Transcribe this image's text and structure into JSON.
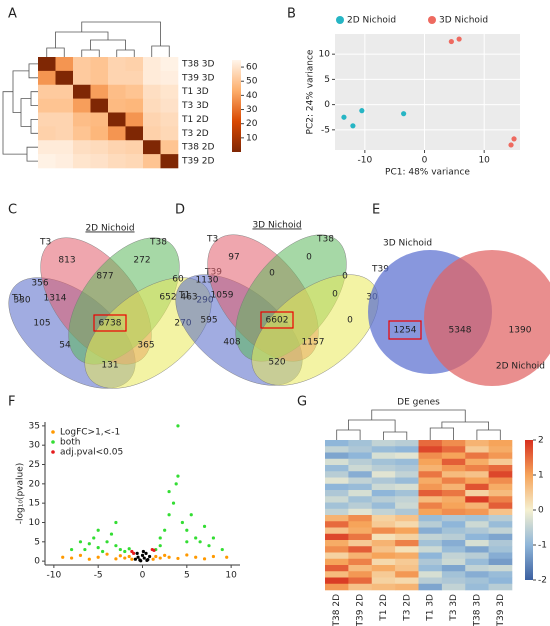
{
  "chart_data": [
    {
      "type": "heatmap",
      "panel": "A",
      "labels": [
        "T38 3D",
        "T39 3D",
        "T1 3D",
        "T3 3D",
        "T1 2D",
        "T3 2D",
        "T38 2D",
        "T39 2D"
      ],
      "values": [
        [
          0,
          38,
          52,
          50,
          55,
          54,
          62,
          64
        ],
        [
          38,
          0,
          52,
          50,
          55,
          55,
          62,
          63
        ],
        [
          52,
          52,
          0,
          40,
          48,
          50,
          58,
          60
        ],
        [
          50,
          50,
          40,
          0,
          47,
          46,
          57,
          59
        ],
        [
          55,
          55,
          48,
          47,
          0,
          38,
          55,
          57
        ],
        [
          54,
          55,
          50,
          46,
          38,
          0,
          54,
          56
        ],
        [
          62,
          62,
          58,
          57,
          55,
          54,
          0,
          50
        ],
        [
          64,
          63,
          60,
          59,
          57,
          56,
          50,
          0
        ]
      ],
      "zlim": [
        0,
        65
      ],
      "zticks": [
        10,
        20,
        30,
        40,
        50,
        60
      ],
      "colorscale": [
        "#7f2704",
        "#d94801",
        "#fdae6b",
        "#fff5eb"
      ]
    },
    {
      "type": "scatter",
      "panel": "B",
      "xlabel": "PC1: 48% variance",
      "ylabel": "PC2: 24% variance",
      "xlim": [
        -15,
        16
      ],
      "ylim": [
        -9,
        14
      ],
      "xticks": [
        -10,
        0,
        10
      ],
      "yticks": [
        -5,
        0,
        5,
        10
      ],
      "grid": true,
      "background": "#ebebeb",
      "legend": "top",
      "series": [
        {
          "name": "2D Nichoid",
          "color": "#26b5c4",
          "x": [
            -13.5,
            -12,
            -10.5,
            -3.5
          ],
          "y": [
            -2.5,
            -4.2,
            -1.2,
            -1.8
          ]
        },
        {
          "name": "3D Nichoid",
          "color": "#ee6a60",
          "x": [
            4.5,
            5.8,
            14.5,
            15
          ],
          "y": [
            12.5,
            13,
            -8,
            -6.8
          ]
        }
      ]
    },
    {
      "type": "venn4",
      "panel": "C",
      "title": "2D Nichoid",
      "sets": [
        {
          "name": "T1",
          "color": "#5468c8"
        },
        {
          "name": "T3",
          "color": "#e25c6c"
        },
        {
          "name": "T38",
          "color": "#5cb85c"
        },
        {
          "name": "T39",
          "color": "#e9e95a"
        }
      ],
      "regions": [
        813,
        272,
        330,
        290,
        356,
        877,
        60,
        1314,
        652,
        6738,
        105,
        270,
        54,
        365,
        131
      ],
      "highlight_region": 9
    },
    {
      "type": "venn4",
      "panel": "D",
      "title": "3D Nichoid",
      "sets": [
        {
          "name": "T1",
          "color": "#5468c8"
        },
        {
          "name": "T3",
          "color": "#e25c6c"
        },
        {
          "name": "T38",
          "color": "#5cb85c"
        },
        {
          "name": "T39",
          "color": "#e9e95a"
        }
      ],
      "regions": [
        97,
        0,
        463,
        30,
        1130,
        0,
        0,
        1059,
        0,
        6602,
        595,
        0,
        408,
        1157,
        520
      ],
      "highlight_region": 9
    },
    {
      "type": "venn2",
      "panel": "E",
      "sets": [
        {
          "name": "3D Nichoid",
          "color": "#5a6fd0"
        },
        {
          "name": "2D Nichoid",
          "color": "#e06262"
        }
      ],
      "regions": [
        1254,
        5348,
        1390
      ],
      "highlight_region": 0
    },
    {
      "type": "scatter",
      "panel": "F",
      "ylabel": "-log₁₀(pvalue)",
      "xlim": [
        -11,
        11
      ],
      "ylim": [
        -1,
        36
      ],
      "xticks": [
        -10,
        -5,
        0,
        5,
        10
      ],
      "yticks": [
        0,
        5,
        10,
        15,
        20,
        25,
        30,
        35
      ],
      "grid": false,
      "legend": "upper left",
      "series": [
        {
          "color": "#000000",
          "x": [
            -0.8,
            -0.5,
            -0.3,
            0,
            0.2,
            0.4,
            0.6,
            0.8,
            -0.6,
            0.1,
            -0.2,
            0.5
          ],
          "y": [
            0.5,
            1,
            0.3,
            1.5,
            0.8,
            2,
            0.4,
            1.2,
            2,
            2.5,
            0.1,
            0.2
          ]
        },
        {
          "name": "LogFC>1,<-1",
          "color": "#ff9900",
          "x": [
            -9,
            -8,
            -7,
            -6,
            -5,
            -4,
            -3,
            -2.5,
            -2,
            -1.5,
            -1.2,
            1.2,
            1.5,
            2,
            2.5,
            3,
            4,
            5,
            6,
            7,
            8,
            9.5
          ],
          "y": [
            1,
            0.8,
            1.5,
            0.5,
            1,
            1.8,
            0.6,
            1.4,
            0.8,
            1.2,
            0.5,
            0.5,
            1.2,
            0.8,
            1.5,
            1,
            0.7,
            1.6,
            1,
            0.6,
            1.2,
            1
          ]
        },
        {
          "name": "both",
          "color": "#33dd33",
          "x": [
            -7,
            -6.5,
            -6,
            -5.5,
            -5,
            -4.5,
            -4,
            -3.5,
            -3,
            -2.5,
            -2,
            -1.5,
            -8,
            -5,
            -3,
            2,
            2.5,
            3,
            3.5,
            3.8,
            4,
            4.5,
            5,
            5.5,
            6,
            6.5,
            7,
            7.5,
            8,
            9,
            3,
            2,
            1.5,
            4,
            5
          ],
          "y": [
            5,
            3,
            4.5,
            6,
            3.5,
            2.5,
            5,
            7,
            4,
            3,
            2.5,
            3.2,
            3,
            8,
            10,
            6,
            8,
            12,
            15,
            20,
            35,
            10,
            8,
            12,
            6,
            5,
            9,
            4,
            6,
            3,
            18,
            4,
            3,
            22,
            5
          ]
        },
        {
          "name": "adj.pval<0.05",
          "color": "#e41a1c",
          "x": [
            -1.2,
            1.3,
            1.1,
            -1.0
          ],
          "y": [
            2.5,
            2.8,
            3,
            2
          ]
        }
      ]
    },
    {
      "type": "heatmap",
      "panel": "G",
      "title": "DE genes",
      "columns": [
        "T38 2D",
        "T39 2D",
        "T1 2D",
        "T3 2D",
        "T1 3D",
        "T3 3D",
        "T38 3D",
        "T39 3D"
      ],
      "values": [
        [
          -1,
          -0.8,
          -0.5,
          -0.6,
          1.5,
          1.2,
          0.8,
          1.0
        ],
        [
          -0.5,
          -0.7,
          -0.9,
          -1.0,
          1.8,
          1.5,
          0.5,
          0.9
        ],
        [
          -1.2,
          -1.0,
          -0.3,
          -0.2,
          1.2,
          1.0,
          1.4,
          1.1
        ],
        [
          -0.3,
          -0.6,
          -0.8,
          -0.9,
          1.0,
          1.6,
          0.9,
          0.5
        ],
        [
          -0.9,
          -0.4,
          -0.6,
          -0.7,
          0.8,
          1.1,
          1.3,
          1.5
        ],
        [
          -0.6,
          -1.1,
          -0.2,
          -0.5,
          1.4,
          0.7,
          0.6,
          1.8
        ],
        [
          -0.2,
          -0.5,
          -0.7,
          -0.9,
          0.9,
          1.3,
          1.0,
          1.2
        ],
        [
          -1.0,
          -0.9,
          -0.4,
          -0.3,
          1.1,
          0.8,
          1.7,
          0.9
        ],
        [
          -0.7,
          -0.3,
          -1.0,
          -0.8,
          1.6,
          1.4,
          0.4,
          0.7
        ],
        [
          -0.4,
          -0.8,
          -0.6,
          -0.5,
          0.7,
          0.9,
          1.9,
          1.3
        ],
        [
          -0.8,
          -0.6,
          -0.9,
          -0.4,
          1.3,
          1.0,
          0.8,
          1.6
        ],
        [
          -0.5,
          -0.2,
          -0.5,
          -0.7,
          1.0,
          1.2,
          1.1,
          0.6
        ],
        [
          0.8,
          1.2,
          0.4,
          0.6,
          -0.9,
          -0.7,
          -0.8,
          -0.6
        ],
        [
          1.5,
          1.0,
          0.5,
          0.3,
          -0.6,
          -1.0,
          -0.4,
          -0.9
        ],
        [
          0.6,
          0.9,
          1.2,
          1.0,
          -1.1,
          -0.8,
          -0.7,
          -0.5
        ],
        [
          1.8,
          1.4,
          0.2,
          0.4,
          -0.5,
          -0.6,
          -1.0,
          -1.2
        ],
        [
          0.9,
          0.5,
          0.8,
          1.3,
          -0.8,
          -1.1,
          -0.3,
          -0.7
        ],
        [
          1.2,
          1.6,
          0.6,
          0.2,
          -0.4,
          -0.9,
          -1.2,
          -0.8
        ],
        [
          0.4,
          0.8,
          1.0,
          0.9,
          -1.0,
          -0.5,
          -0.6,
          -1.1
        ],
        [
          1.0,
          1.3,
          0.3,
          0.5,
          -0.7,
          -0.4,
          -0.9,
          -1.3
        ],
        [
          1.6,
          0.7,
          0.9,
          0.6,
          -0.9,
          -1.2,
          -0.5,
          -0.4
        ],
        [
          0.7,
          1.1,
          0.5,
          1.1,
          -0.3,
          -0.8,
          -1.1,
          -0.9
        ],
        [
          1.9,
          1.5,
          0.4,
          0.3,
          -0.6,
          -0.7,
          -0.8,
          -1.0
        ],
        [
          1.1,
          0.6,
          0.7,
          0.8,
          -1.2,
          -0.5,
          -0.9,
          -0.6
        ]
      ],
      "zlim": [
        -2,
        2
      ],
      "zticks": [
        2,
        1,
        0,
        -1,
        -2
      ],
      "colorscale": [
        "#3b5fa0",
        "#8fb6d9",
        "#f5f0d0",
        "#f6a45a",
        "#d7301f"
      ]
    }
  ]
}
